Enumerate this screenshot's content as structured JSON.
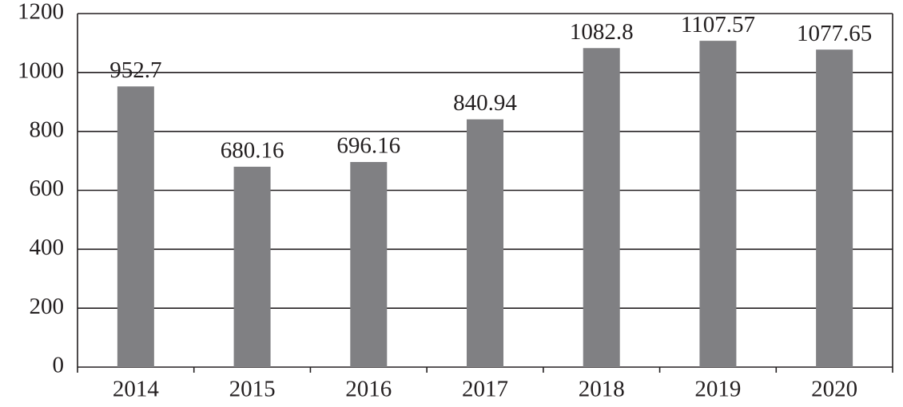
{
  "chart_data": {
    "type": "bar",
    "categories": [
      "2014",
      "2015",
      "2016",
      "2017",
      "2018",
      "2019",
      "2020"
    ],
    "values": [
      952.7,
      680.16,
      696.16,
      840.94,
      1082.8,
      1107.57,
      1077.65
    ],
    "color": "#808083",
    "ylim": [
      0,
      1200
    ],
    "yticks": [
      0,
      200,
      400,
      600,
      800,
      1000,
      1200
    ],
    "grid": true
  }
}
